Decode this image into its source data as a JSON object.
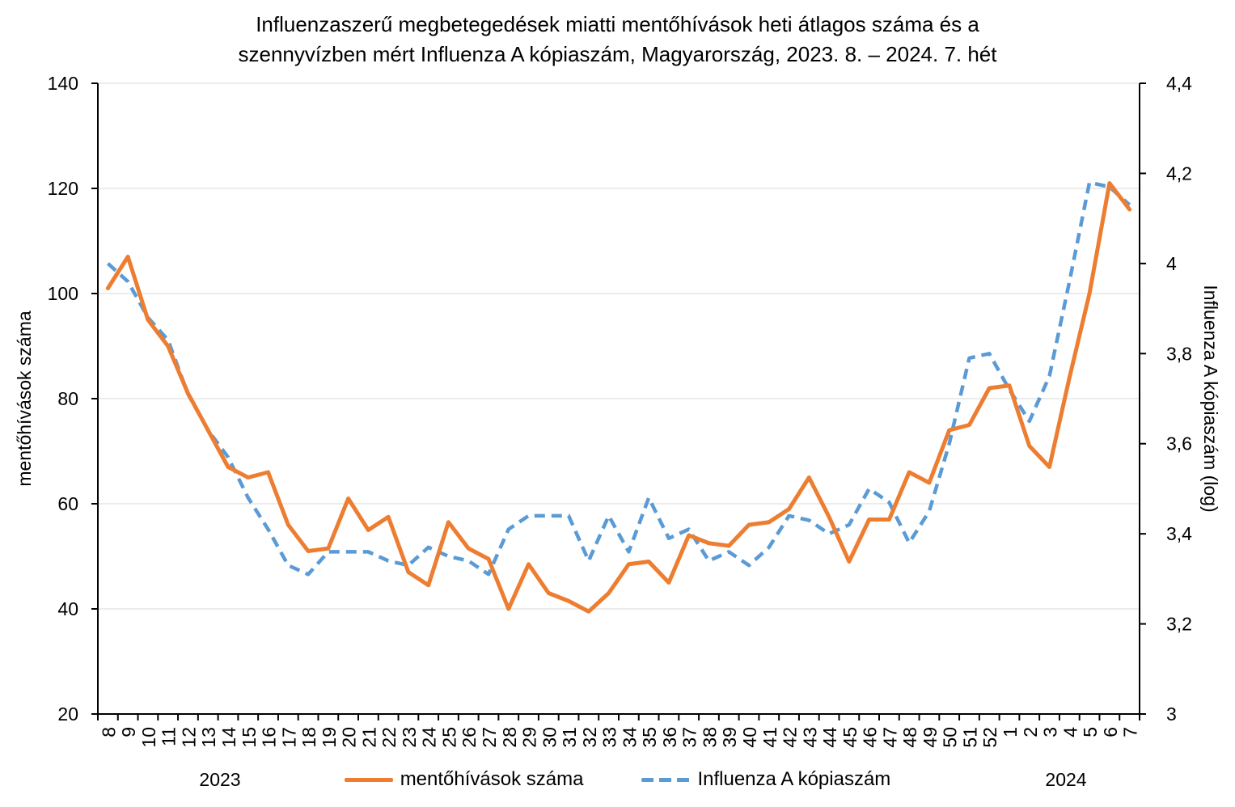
{
  "title": {
    "line1": "Influenzaszerű megbetegedések miatti mentőhívások heti átlagos száma és a",
    "line2": "szennyvízben mért Influenza A kópiaszám, Magyarország, 2023. 8. – 2024. 7. hét"
  },
  "axes": {
    "left": {
      "title": "mentőhívások száma",
      "tick_labels": [
        "140",
        "120",
        "100",
        "80",
        "60",
        "40",
        "20"
      ]
    },
    "right": {
      "title": "Influenza A kópiaszám (log)",
      "tick_labels": [
        "4,4",
        "4,2",
        "4",
        "3,8",
        "3,6",
        "3,4",
        "3,2",
        "3"
      ]
    },
    "x": {
      "year_left": "2023",
      "year_right": "2024"
    }
  },
  "legend": {
    "items": [
      {
        "label": "mentőhívások száma",
        "color": "#ED7D31",
        "style": "solid"
      },
      {
        "label": "Influenza A kópiaszám",
        "color": "#5B9BD5",
        "style": "dashed"
      }
    ]
  },
  "colors": {
    "orange": "#ED7D31",
    "blue": "#5B9BD5",
    "gridline": "#D9D9D9",
    "axis": "#000000",
    "text": "#000000",
    "background": "#FFFFFF"
  },
  "chart_data": {
    "type": "line",
    "title": "Influenzaszerű megbetegedések miatti mentőhívások heti átlagos száma és a szennyvízben mért Influenza A kópiaszám, Magyarország, 2023. 8. – 2024. 7. hét",
    "x_labels": [
      "8",
      "9",
      "10",
      "11",
      "12",
      "13",
      "14",
      "15",
      "16",
      "17",
      "18",
      "19",
      "20",
      "21",
      "22",
      "23",
      "24",
      "25",
      "26",
      "27",
      "28",
      "29",
      "30",
      "31",
      "32",
      "33",
      "34",
      "35",
      "36",
      "37",
      "38",
      "39",
      "40",
      "41",
      "42",
      "43",
      "44",
      "45",
      "46",
      "47",
      "48",
      "49",
      "50",
      "51",
      "52",
      "1",
      "2",
      "3",
      "4",
      "5",
      "6",
      "7"
    ],
    "x_year_groups": [
      {
        "year": "2023",
        "weeks": "8–52"
      },
      {
        "year": "2024",
        "weeks": "1–7"
      }
    ],
    "series": [
      {
        "name": "mentőhívások száma",
        "axis": "left",
        "color": "#ED7D31",
        "line_style": "solid",
        "values": [
          101,
          107,
          95,
          90,
          81,
          74,
          67,
          65,
          66,
          56,
          51,
          51.5,
          61,
          55,
          57.5,
          47,
          44.5,
          56.5,
          51.5,
          49.5,
          40,
          48.5,
          43,
          41.5,
          39.5,
          43,
          48.5,
          49,
          45,
          54,
          52.5,
          52,
          56,
          56.5,
          59,
          65,
          57.5,
          49,
          57,
          57,
          66,
          64,
          74,
          75,
          82,
          82.5,
          71,
          67,
          84,
          100,
          121,
          116
        ]
      },
      {
        "name": "Influenza A kópiaszám",
        "axis": "right",
        "color": "#5B9BD5",
        "line_style": "dashed",
        "values": [
          4.0,
          3.96,
          3.88,
          3.83,
          3.71,
          3.63,
          3.57,
          3.48,
          3.41,
          3.33,
          3.31,
          3.36,
          3.36,
          3.36,
          3.34,
          3.33,
          3.37,
          3.35,
          3.34,
          3.31,
          3.41,
          3.44,
          3.44,
          3.44,
          3.34,
          3.44,
          3.36,
          3.48,
          3.39,
          3.41,
          3.34,
          3.36,
          3.33,
          3.37,
          3.44,
          3.43,
          3.4,
          3.42,
          3.5,
          3.47,
          3.38,
          3.45,
          3.6,
          3.79,
          3.8,
          3.72,
          3.65,
          3.75,
          3.96,
          4.18,
          4.17,
          4.13
        ]
      }
    ],
    "ylabel_left": "mentőhívások száma",
    "ylabel_right": "Influenza A kópiaszám (log)",
    "ylim_left": [
      20,
      140
    ],
    "ylim_right": [
      3,
      4.4
    ],
    "left_tick_step": 20,
    "right_tick_step": 0.2,
    "grid": true,
    "legend_position": "bottom",
    "x_tick_label_rotation_deg": -90
  }
}
